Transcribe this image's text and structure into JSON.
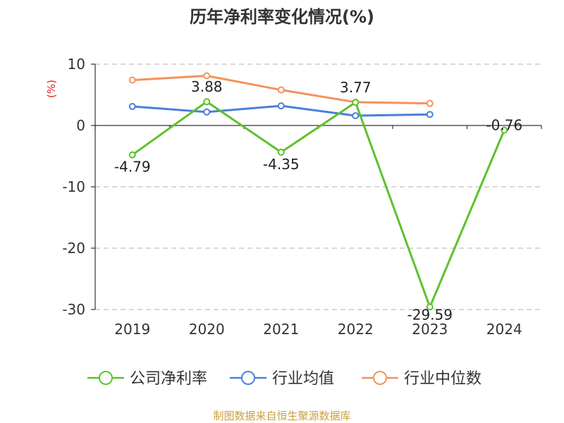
{
  "chart_data": {
    "type": "line",
    "title": "历年净利率变化情况(%)",
    "ylabel": "(%)",
    "xlabel": "",
    "categories": [
      "2019",
      "2020",
      "2021",
      "2022",
      "2023",
      "2024"
    ],
    "ylim": [
      -30,
      10
    ],
    "yticks": [
      10,
      0,
      -10,
      -20,
      -30
    ],
    "grid": true,
    "legend_position": "bottom",
    "series": [
      {
        "name": "公司净利率",
        "color": "#5cc22b",
        "values": [
          -4.79,
          3.88,
          -4.35,
          3.77,
          -29.59,
          -0.76
        ],
        "labels": [
          "-4.79",
          "3.88",
          "-4.35",
          "3.77",
          "-29.59",
          "-0.76"
        ]
      },
      {
        "name": "行业均值",
        "color": "#4a7fdc",
        "values": [
          3.1,
          2.2,
          3.2,
          1.6,
          1.8,
          null
        ]
      },
      {
        "name": "行业中位数",
        "color": "#f5925a",
        "values": [
          7.4,
          8.1,
          5.8,
          3.8,
          3.6,
          null
        ]
      }
    ],
    "source": "制图数据来自恒生聚源数据库"
  }
}
